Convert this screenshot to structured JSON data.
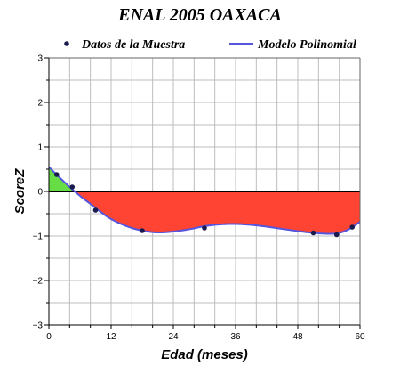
{
  "chart_data": {
    "type": "line",
    "title": "ENAL 2005 OAXACA",
    "xlabel": "Edad (meses)",
    "ylabel": "ScoreZ",
    "xlim": [
      0,
      60
    ],
    "ylim": [
      -3,
      3
    ],
    "xticks": [
      "0",
      "12",
      "24",
      "36",
      "48",
      "60"
    ],
    "yticks": [
      "3",
      "2",
      "1",
      "0",
      "-1",
      "-2",
      "-3"
    ],
    "grid": true,
    "legend_position": "top",
    "series": [
      {
        "name": "Datos de la Muestra",
        "kind": "scatter",
        "color": "#1a1a4e",
        "x": [
          1.5,
          4.5,
          9,
          18,
          30,
          51,
          55.5,
          58.5
        ],
        "y": [
          0.38,
          0.1,
          -0.42,
          -0.88,
          -0.82,
          -0.93,
          -0.97,
          -0.8
        ]
      },
      {
        "name": "Modelo Polinomial",
        "kind": "line",
        "color": "#5555dd",
        "x": [
          0,
          2,
          4,
          6,
          8,
          10,
          12,
          15,
          18,
          21,
          24,
          27,
          30,
          33,
          36,
          39,
          42,
          45,
          48,
          51,
          54,
          56,
          58,
          60
        ],
        "y": [
          0.55,
          0.32,
          0.1,
          -0.1,
          -0.28,
          -0.46,
          -0.62,
          -0.78,
          -0.88,
          -0.92,
          -0.9,
          -0.85,
          -0.78,
          -0.74,
          -0.73,
          -0.75,
          -0.79,
          -0.84,
          -0.89,
          -0.93,
          -0.95,
          -0.93,
          -0.84,
          -0.68
        ]
      }
    ],
    "fill_positive_color": "#66dd44",
    "fill_negative_color": "#ff4433"
  }
}
